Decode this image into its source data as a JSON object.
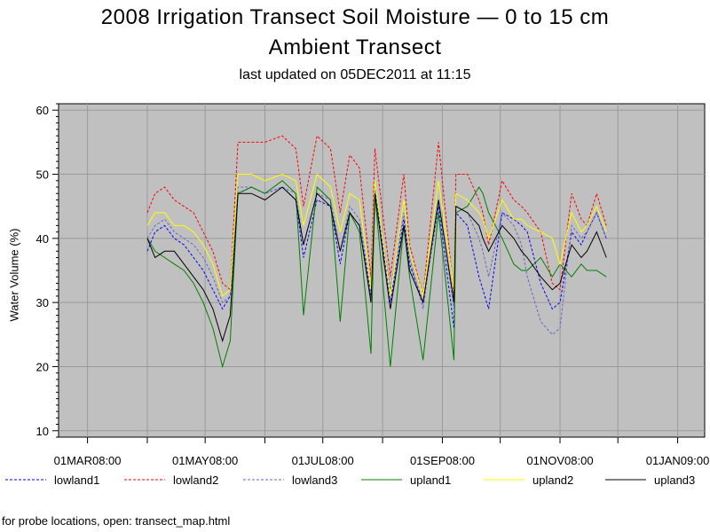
{
  "chart_data": {
    "type": "line",
    "title": "2008 Irrigation Transect Soil Moisture — 0 to 15 cm",
    "subtitle": "Ambient Transect",
    "updated": "last updated on 05DEC2011 at 11:15",
    "ylabel": "Water Volume (%)",
    "xlabel": "",
    "xlim": [
      "2008-02-15",
      "2009-01-15"
    ],
    "ylim": [
      9,
      61
    ],
    "yticks": [
      10,
      20,
      30,
      40,
      50,
      60
    ],
    "xticks": [
      {
        "date": "2008-03-01",
        "label": "01MAR08:00"
      },
      {
        "date": "2008-05-01",
        "label": "01MAY08:00"
      },
      {
        "date": "2008-07-01",
        "label": "01JUL08:00"
      },
      {
        "date": "2008-09-01",
        "label": "01SEP08:00"
      },
      {
        "date": "2008-11-01",
        "label": "01NOV08:00"
      },
      {
        "date": "2009-01-01",
        "label": "01JAN09:00"
      }
    ],
    "grid": true,
    "background": "#c0c0c0",
    "legend": "bottom",
    "series": [
      {
        "name": "lowland1",
        "color": "#0000ff",
        "dash": "dashed",
        "x": [
          "2008-04-01",
          "2008-04-05",
          "2008-04-10",
          "2008-04-15",
          "2008-04-20",
          "2008-04-25",
          "2008-04-30",
          "2008-05-05",
          "2008-05-10",
          "2008-05-14",
          "2008-05-18",
          "2008-05-25",
          "2008-06-01",
          "2008-06-10",
          "2008-06-17",
          "2008-06-21",
          "2008-06-28",
          "2008-07-05",
          "2008-07-10",
          "2008-07-15",
          "2008-07-20",
          "2008-07-26",
          "2008-07-28",
          "2008-08-05",
          "2008-08-12",
          "2008-08-15",
          "2008-08-22",
          "2008-08-30",
          "2008-09-07",
          "2008-09-08",
          "2008-09-14",
          "2008-09-20",
          "2008-09-22",
          "2008-09-25",
          "2008-10-02",
          "2008-10-08",
          "2008-10-12",
          "2008-10-15",
          "2008-10-22",
          "2008-10-28",
          "2008-11-01",
          "2008-11-07",
          "2008-11-12",
          "2008-11-15",
          "2008-11-20",
          "2008-11-25"
        ],
        "y": [
          38,
          41,
          42,
          40,
          39,
          37,
          35,
          32,
          29,
          31,
          47,
          48,
          47,
          48,
          46,
          37,
          46,
          45,
          36,
          44,
          42,
          31,
          48,
          30,
          43,
          36,
          30,
          45,
          26,
          44,
          42,
          34,
          32,
          29,
          44,
          43,
          42,
          41,
          33,
          29,
          30,
          41,
          39,
          41,
          44,
          40
        ]
      },
      {
        "name": "lowland2",
        "color": "#ff0000",
        "dash": "dashed",
        "x": [
          "2008-04-01",
          "2008-04-05",
          "2008-04-10",
          "2008-04-15",
          "2008-04-20",
          "2008-04-25",
          "2008-04-30",
          "2008-05-05",
          "2008-05-10",
          "2008-05-14",
          "2008-05-18",
          "2008-05-25",
          "2008-06-01",
          "2008-06-10",
          "2008-06-17",
          "2008-06-21",
          "2008-06-28",
          "2008-07-05",
          "2008-07-10",
          "2008-07-15",
          "2008-07-20",
          "2008-07-26",
          "2008-07-28",
          "2008-08-05",
          "2008-08-12",
          "2008-08-15",
          "2008-08-22",
          "2008-08-30",
          "2008-09-07",
          "2008-09-08",
          "2008-09-14",
          "2008-09-20",
          "2008-09-22",
          "2008-09-25",
          "2008-10-02",
          "2008-10-08",
          "2008-10-12",
          "2008-10-15",
          "2008-10-22",
          "2008-10-28",
          "2008-11-01",
          "2008-11-07",
          "2008-11-12",
          "2008-11-15",
          "2008-11-20",
          "2008-11-25"
        ],
        "y": [
          44,
          47,
          48,
          46,
          45,
          44,
          41,
          38,
          33,
          32,
          55,
          55,
          55,
          56,
          54,
          45,
          56,
          54,
          44,
          53,
          51,
          34,
          54,
          34,
          50,
          39,
          31,
          55,
          31,
          50,
          50,
          46,
          44,
          39,
          49,
          46,
          45,
          44,
          41,
          33,
          32,
          47,
          43,
          42,
          47,
          42
        ]
      },
      {
        "name": "lowland3",
        "color": "#6666cc",
        "dash": "dashed",
        "x": [
          "2008-04-01",
          "2008-04-05",
          "2008-04-10",
          "2008-04-15",
          "2008-04-20",
          "2008-04-25",
          "2008-04-30",
          "2008-05-05",
          "2008-05-10",
          "2008-05-14",
          "2008-05-18",
          "2008-05-25",
          "2008-06-01",
          "2008-06-10",
          "2008-06-17",
          "2008-06-21",
          "2008-06-28",
          "2008-07-05",
          "2008-07-10",
          "2008-07-15",
          "2008-07-20",
          "2008-07-26",
          "2008-07-28",
          "2008-08-05",
          "2008-08-12",
          "2008-08-15",
          "2008-08-22",
          "2008-08-30",
          "2008-09-07",
          "2008-09-08",
          "2008-09-14",
          "2008-09-20",
          "2008-09-22",
          "2008-09-25",
          "2008-10-02",
          "2008-10-08",
          "2008-10-12",
          "2008-10-15",
          "2008-10-22",
          "2008-10-28",
          "2008-11-01",
          "2008-11-07",
          "2008-11-12",
          "2008-11-15",
          "2008-11-20",
          "2008-11-25"
        ],
        "y": [
          40,
          42,
          43,
          41,
          40,
          39,
          37,
          34,
          30,
          31,
          48,
          48,
          47,
          48,
          47,
          39,
          47,
          46,
          38,
          45,
          43,
          32,
          48,
          32,
          44,
          37,
          29,
          46,
          29,
          45,
          44,
          40,
          38,
          34,
          44,
          42,
          39,
          34,
          27,
          25,
          26,
          42,
          40,
          41,
          44,
          40
        ]
      },
      {
        "name": "upland1",
        "color": "#008000",
        "dash": "solid",
        "x": [
          "2008-04-01",
          "2008-04-05",
          "2008-04-10",
          "2008-04-15",
          "2008-04-20",
          "2008-04-25",
          "2008-04-30",
          "2008-05-05",
          "2008-05-10",
          "2008-05-14",
          "2008-05-18",
          "2008-05-25",
          "2008-06-01",
          "2008-06-10",
          "2008-06-17",
          "2008-06-21",
          "2008-06-28",
          "2008-07-05",
          "2008-07-10",
          "2008-07-15",
          "2008-07-20",
          "2008-07-26",
          "2008-07-28",
          "2008-08-05",
          "2008-08-12",
          "2008-08-15",
          "2008-08-22",
          "2008-08-30",
          "2008-09-07",
          "2008-09-08",
          "2008-09-14",
          "2008-09-20",
          "2008-09-22",
          "2008-09-25",
          "2008-10-02",
          "2008-10-08",
          "2008-10-12",
          "2008-10-15",
          "2008-10-22",
          "2008-10-28",
          "2008-11-01",
          "2008-11-07",
          "2008-11-12",
          "2008-11-15",
          "2008-11-20",
          "2008-11-25"
        ],
        "y": [
          40,
          38,
          37,
          36,
          35,
          33,
          30,
          26,
          20,
          24,
          47,
          48,
          47,
          49,
          47,
          28,
          48,
          46,
          27,
          44,
          41,
          22,
          47,
          20,
          42,
          34,
          21,
          44,
          21,
          44,
          45,
          48,
          47,
          44,
          40,
          36,
          35,
          35,
          37,
          34,
          36,
          34,
          36,
          35,
          35,
          34
        ]
      },
      {
        "name": "upland2",
        "color": "#ffff00",
        "dash": "solid",
        "x": [
          "2008-04-01",
          "2008-04-05",
          "2008-04-10",
          "2008-04-15",
          "2008-04-20",
          "2008-04-25",
          "2008-04-30",
          "2008-05-05",
          "2008-05-10",
          "2008-05-14",
          "2008-05-18",
          "2008-05-25",
          "2008-06-01",
          "2008-06-10",
          "2008-06-17",
          "2008-06-21",
          "2008-06-28",
          "2008-07-05",
          "2008-07-10",
          "2008-07-15",
          "2008-07-20",
          "2008-07-26",
          "2008-07-28",
          "2008-08-05",
          "2008-08-12",
          "2008-08-15",
          "2008-08-22",
          "2008-08-30",
          "2008-09-07",
          "2008-09-08",
          "2008-09-14",
          "2008-09-20",
          "2008-09-22",
          "2008-09-25",
          "2008-10-02",
          "2008-10-08",
          "2008-10-12",
          "2008-10-15",
          "2008-10-22",
          "2008-10-28",
          "2008-11-01",
          "2008-11-07",
          "2008-11-12",
          "2008-11-15",
          "2008-11-20",
          "2008-11-25"
        ],
        "y": [
          42,
          44,
          44,
          42,
          42,
          41,
          39,
          36,
          31,
          32,
          50,
          50,
          49,
          50,
          49,
          42,
          50,
          48,
          41,
          47,
          46,
          32,
          49,
          31,
          46,
          38,
          31,
          49,
          32,
          47,
          46,
          44,
          43,
          40,
          46,
          43,
          43,
          42,
          41,
          40,
          36,
          44,
          41,
          42,
          45,
          41
        ]
      },
      {
        "name": "upland3",
        "color": "#000000",
        "dash": "solid",
        "x": [
          "2008-04-01",
          "2008-04-05",
          "2008-04-10",
          "2008-04-15",
          "2008-04-20",
          "2008-04-25",
          "2008-04-30",
          "2008-05-05",
          "2008-05-10",
          "2008-05-14",
          "2008-05-18",
          "2008-05-25",
          "2008-06-01",
          "2008-06-10",
          "2008-06-17",
          "2008-06-21",
          "2008-06-28",
          "2008-07-05",
          "2008-07-10",
          "2008-07-15",
          "2008-07-20",
          "2008-07-26",
          "2008-07-28",
          "2008-08-05",
          "2008-08-12",
          "2008-08-15",
          "2008-08-22",
          "2008-08-30",
          "2008-09-07",
          "2008-09-08",
          "2008-09-14",
          "2008-09-20",
          "2008-09-22",
          "2008-09-25",
          "2008-10-02",
          "2008-10-08",
          "2008-10-12",
          "2008-10-15",
          "2008-10-22",
          "2008-10-28",
          "2008-11-01",
          "2008-11-07",
          "2008-11-12",
          "2008-11-15",
          "2008-11-20",
          "2008-11-25"
        ],
        "y": [
          40,
          37,
          38,
          38,
          36,
          34,
          32,
          29,
          24,
          28,
          47,
          47,
          46,
          48,
          46,
          39,
          47,
          45,
          38,
          44,
          42,
          30,
          47,
          29,
          42,
          35,
          30,
          46,
          30,
          45,
          44,
          42,
          40,
          38,
          42,
          40,
          38,
          37,
          34,
          32,
          33,
          39,
          37,
          38,
          41,
          37
        ]
      }
    ]
  },
  "footer_text": "for probe locations, open: transect_map.html"
}
